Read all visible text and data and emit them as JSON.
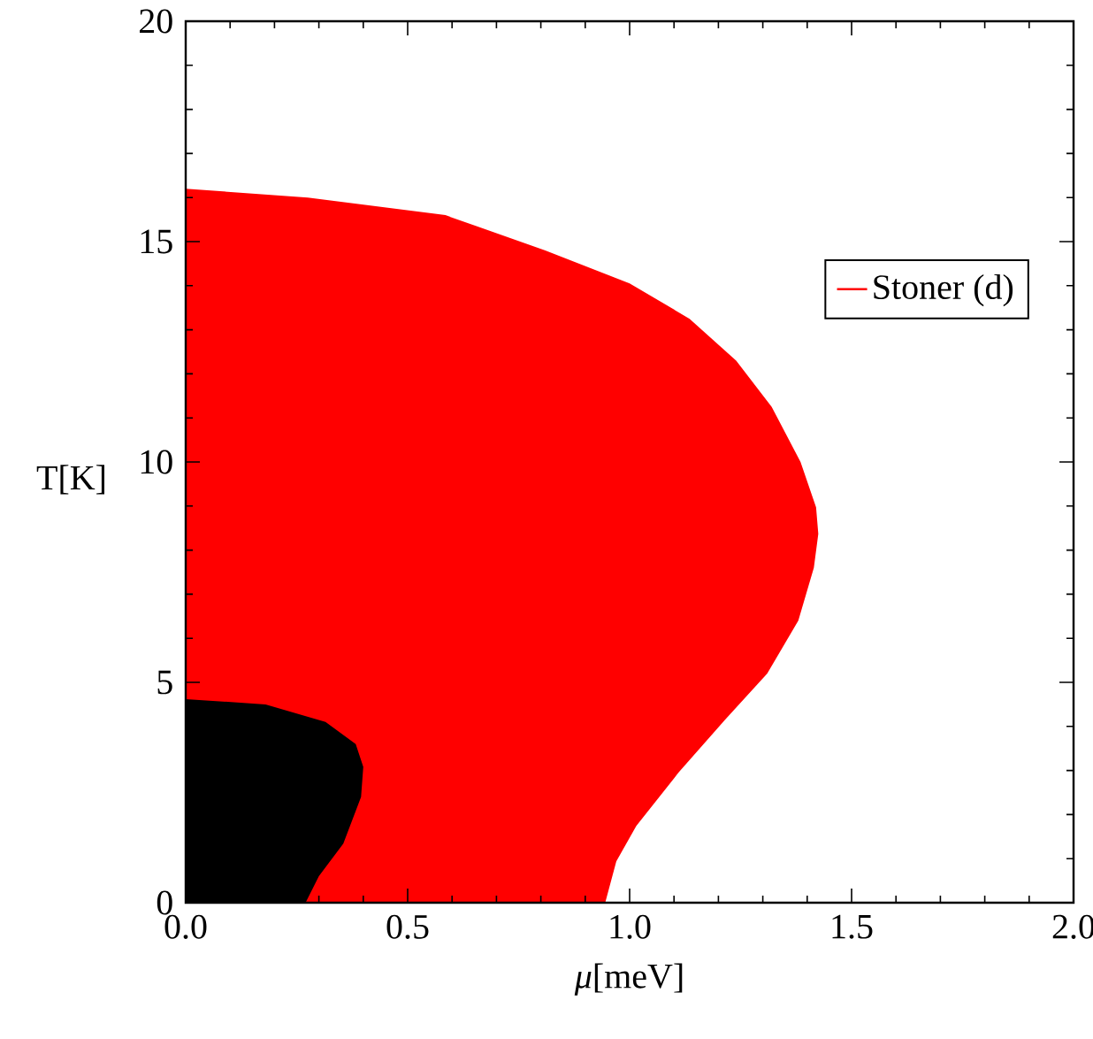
{
  "chart_data": {
    "type": "area",
    "xlabel": "*μ*[meV]",
    "ylabel": "T[K]",
    "xlim": [
      0,
      2
    ],
    "ylim": [
      0,
      20
    ],
    "xticks": [
      {
        "value": 0,
        "label": "0.0"
      },
      {
        "value": 0.5,
        "label": "0.5"
      },
      {
        "value": 1,
        "label": "1.0"
      },
      {
        "value": 1.5,
        "label": "1.5"
      },
      {
        "value": 2,
        "label": "2.0"
      }
    ],
    "yticks": [
      0,
      5,
      10,
      15,
      20
    ],
    "legend": "top right",
    "series": [
      {
        "name": "Stoner (d)",
        "color": "#ff0000",
        "x": [
          0,
          0.275,
          0.585,
          0.81,
          1.0,
          1.135,
          1.24,
          1.32,
          1.385,
          1.42,
          1.425,
          1.415,
          1.38,
          1.31,
          1.215,
          1.11,
          1.015,
          0.97,
          0.945,
          0.27,
          0
        ],
        "values": [
          16.2,
          16.0,
          15.6,
          14.8,
          14.05,
          13.25,
          12.3,
          11.25,
          10.0,
          8.97,
          8.37,
          7.6,
          6.4,
          5.2,
          4.15,
          2.95,
          1.74,
          0.94,
          0,
          0,
          4.62
        ]
      },
      {
        "color": "#000000",
        "x": [
          0,
          0.18,
          0.315,
          0.383,
          0.4,
          0.395,
          0.355,
          0.3,
          0.27,
          0
        ],
        "values": [
          4.62,
          4.5,
          4.1,
          3.6,
          3.08,
          2.4,
          1.34,
          0.6,
          0,
          0
        ]
      }
    ]
  }
}
